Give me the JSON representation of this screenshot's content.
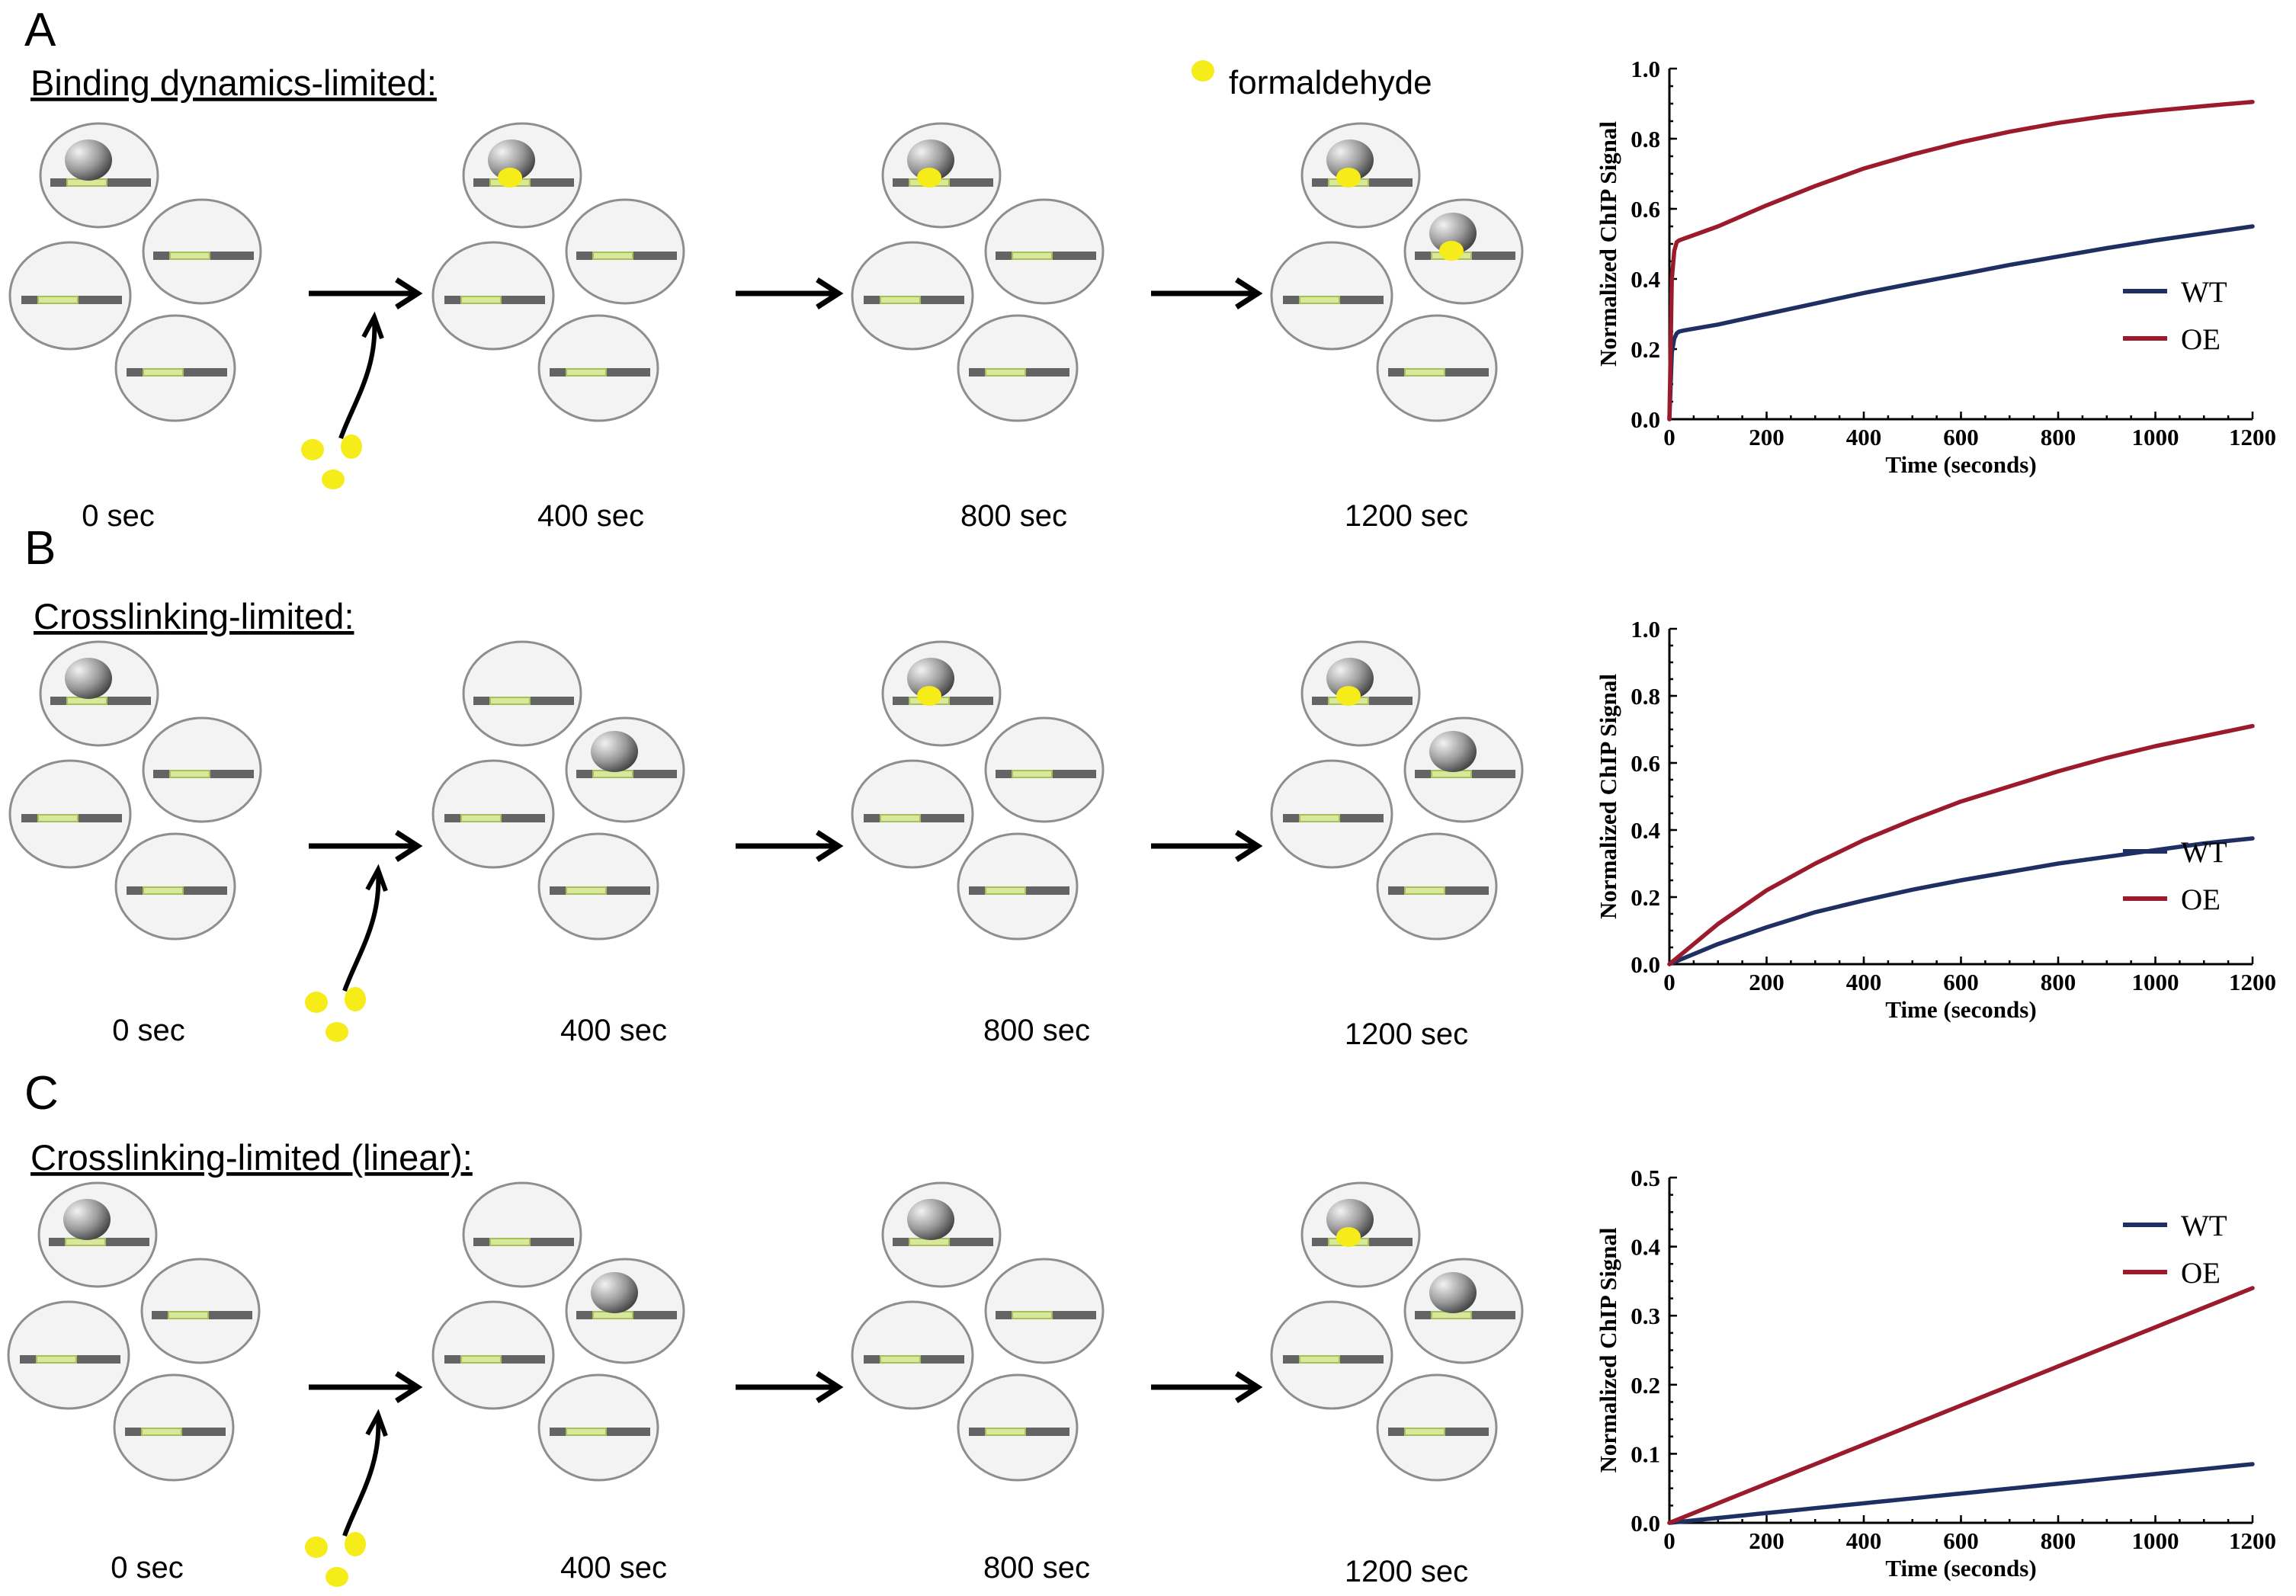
{
  "colors": {
    "formaldehyde": "#f5ec1a",
    "wt": "#1f2f63",
    "oe": "#9b1b2c",
    "dna": "#646464",
    "binding_site": "#d8e89a"
  },
  "legend": {
    "formaldehyde_label": "formaldehyde"
  },
  "panels": [
    {
      "letter": "A",
      "title": "Binding dynamics-limited:",
      "time_labels": [
        "0 sec",
        "400 sec",
        "800 sec",
        "1200 sec"
      ]
    },
    {
      "letter": "B",
      "title": "Crosslinking-limited:",
      "time_labels": [
        "0 sec",
        "400 sec",
        "800 sec",
        "1200 sec"
      ]
    },
    {
      "letter": "C",
      "title": "Crosslinking-limited (linear):",
      "time_labels": [
        "0 sec",
        "400 sec",
        "800 sec",
        "1200 sec"
      ]
    }
  ],
  "chart_data": [
    {
      "type": "line",
      "xlabel": "Time (seconds)",
      "ylabel": "Normalized ChIP Signal",
      "xlim": [
        0,
        1200
      ],
      "ylim": [
        0,
        1.0
      ],
      "xticks": [
        "0",
        "200",
        "400",
        "600",
        "800",
        "1000",
        "1200"
      ],
      "yticks": [
        "0.0",
        "0.2",
        "0.4",
        "0.6",
        "0.8",
        "1.0"
      ],
      "legend_position": "right",
      "x": [
        0,
        5,
        10,
        15,
        20,
        30,
        50,
        100,
        200,
        300,
        400,
        500,
        600,
        700,
        800,
        900,
        1000,
        1100,
        1200
      ],
      "series": [
        {
          "name": "WT",
          "color": "#1f2f63",
          "values": [
            0,
            0.19,
            0.23,
            0.245,
            0.25,
            0.253,
            0.258,
            0.27,
            0.3,
            0.33,
            0.36,
            0.387,
            0.413,
            0.44,
            0.464,
            0.488,
            0.51,
            0.53,
            0.55
          ]
        },
        {
          "name": "OE",
          "color": "#9b1b2c",
          "values": [
            0,
            0.4,
            0.48,
            0.505,
            0.51,
            0.515,
            0.525,
            0.55,
            0.61,
            0.665,
            0.715,
            0.755,
            0.79,
            0.82,
            0.845,
            0.865,
            0.88,
            0.893,
            0.905
          ]
        }
      ]
    },
    {
      "type": "line",
      "xlabel": "Time (seconds)",
      "ylabel": "Normalized ChIP Signal",
      "xlim": [
        0,
        1200
      ],
      "ylim": [
        0,
        1.0
      ],
      "xticks": [
        "0",
        "200",
        "400",
        "600",
        "800",
        "1000",
        "1200"
      ],
      "yticks": [
        "0.0",
        "0.2",
        "0.4",
        "0.6",
        "0.8",
        "1.0"
      ],
      "legend_position": "right",
      "x": [
        0,
        100,
        200,
        300,
        400,
        500,
        600,
        700,
        800,
        900,
        1000,
        1100,
        1200
      ],
      "series": [
        {
          "name": "WT",
          "color": "#1f2f63",
          "values": [
            0,
            0.06,
            0.11,
            0.155,
            0.19,
            0.222,
            0.25,
            0.275,
            0.3,
            0.32,
            0.34,
            0.36,
            0.375
          ]
        },
        {
          "name": "OE",
          "color": "#9b1b2c",
          "values": [
            0,
            0.12,
            0.22,
            0.3,
            0.37,
            0.43,
            0.485,
            0.53,
            0.575,
            0.615,
            0.65,
            0.68,
            0.71
          ]
        }
      ]
    },
    {
      "type": "line",
      "xlabel": "Time (seconds)",
      "ylabel": "Normalized ChIP Signal",
      "xlim": [
        0,
        1200
      ],
      "ylim": [
        0,
        0.5
      ],
      "xticks": [
        "0",
        "200",
        "400",
        "600",
        "800",
        "1000",
        "1200"
      ],
      "yticks": [
        "0.0",
        "0.1",
        "0.2",
        "0.3",
        "0.4",
        "0.5"
      ],
      "legend_position": "top-right",
      "x": [
        0,
        1200
      ],
      "series": [
        {
          "name": "WT",
          "color": "#1f2f63",
          "values": [
            0,
            0.085
          ]
        },
        {
          "name": "OE",
          "color": "#9b1b2c",
          "values": [
            0,
            0.34
          ]
        }
      ]
    }
  ]
}
